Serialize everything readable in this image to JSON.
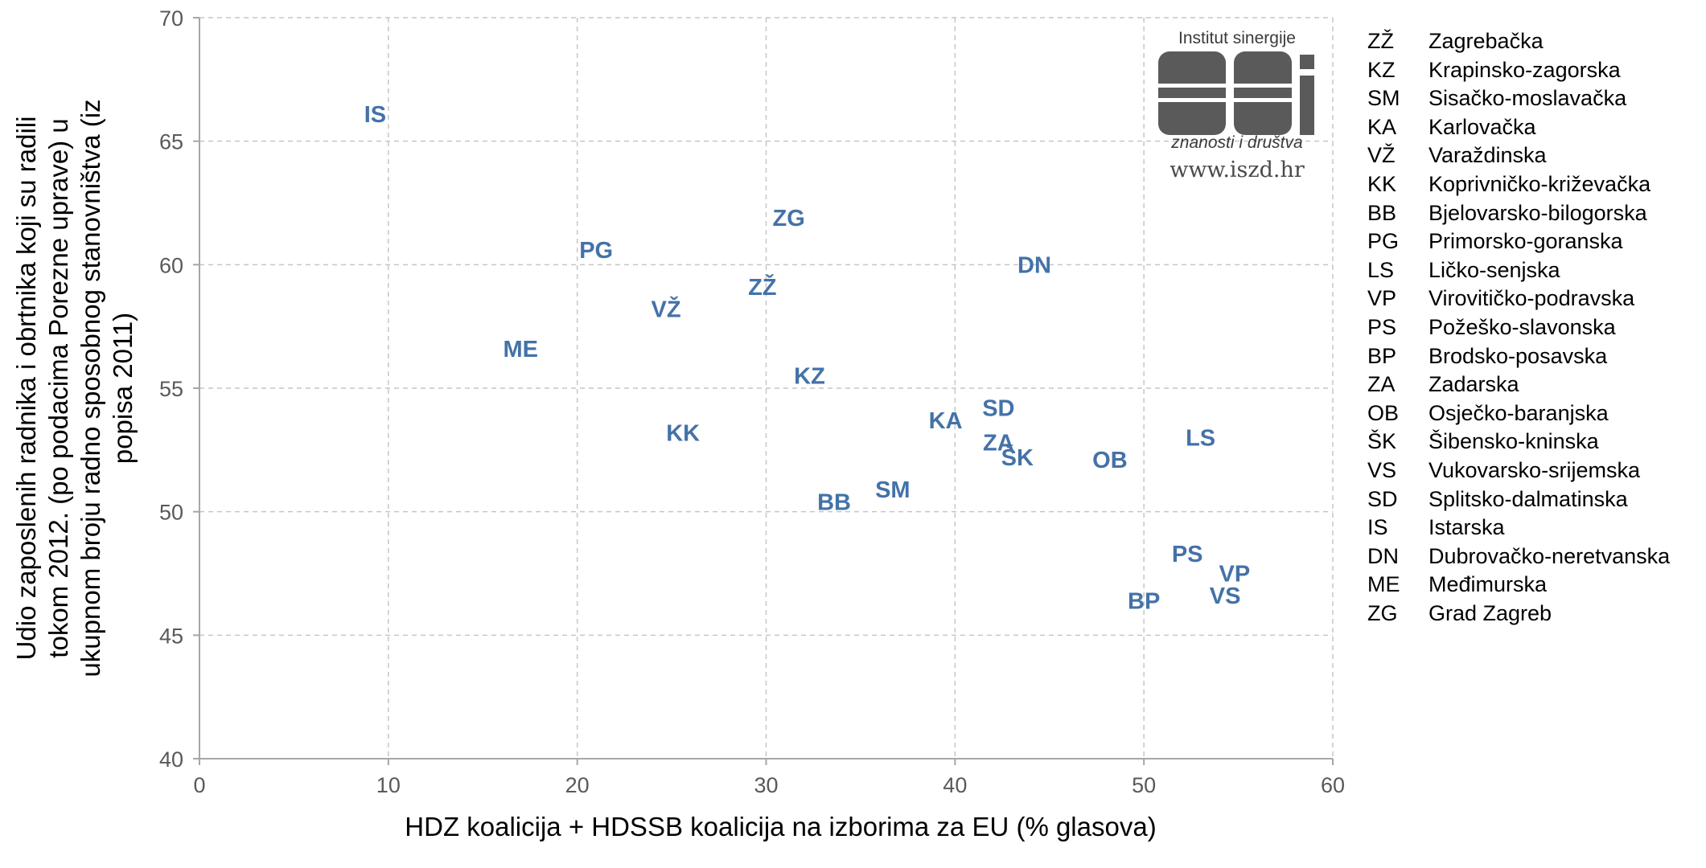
{
  "chart_data": {
    "type": "scatter",
    "xlabel": "HDZ koalicija + HDSSB koalicija na izborima za EU (% glasova)",
    "ylabel_lines": [
      "Udio zaposlenih radnika i obrtnika koji su radili",
      "tokom 2012. (po podacima Porezne uprave) u",
      "ukupnom broju radno sposobnog stanovništva (iz",
      "popisa 2011)"
    ],
    "xlim": [
      0,
      60
    ],
    "ylim": [
      40,
      70
    ],
    "x_ticks": [
      0,
      10,
      20,
      30,
      40,
      50,
      60
    ],
    "y_ticks": [
      40,
      45,
      50,
      55,
      60,
      65,
      70
    ],
    "grid": true,
    "point_color": "#4472a8",
    "points": [
      {
        "label": "IS",
        "x": 9.3,
        "y": 66.1
      },
      {
        "label": "ZG",
        "x": 31.2,
        "y": 61.9
      },
      {
        "label": "PG",
        "x": 21.0,
        "y": 60.6
      },
      {
        "label": "DN",
        "x": 44.2,
        "y": 60.0
      },
      {
        "label": "ZŽ",
        "x": 29.8,
        "y": 59.1
      },
      {
        "label": "VŽ",
        "x": 24.7,
        "y": 58.2
      },
      {
        "label": "ME",
        "x": 17.0,
        "y": 56.6
      },
      {
        "label": "KZ",
        "x": 32.3,
        "y": 55.5
      },
      {
        "label": "SD",
        "x": 42.3,
        "y": 54.2
      },
      {
        "label": "KA",
        "x": 39.5,
        "y": 53.7
      },
      {
        "label": "KK",
        "x": 25.6,
        "y": 53.2
      },
      {
        "label": "LS",
        "x": 53.0,
        "y": 53.0
      },
      {
        "label": "ZA",
        "x": 42.3,
        "y": 52.8
      },
      {
        "label": "ŠK",
        "x": 43.3,
        "y": 52.2
      },
      {
        "label": "OB",
        "x": 48.2,
        "y": 52.1
      },
      {
        "label": "SM",
        "x": 36.7,
        "y": 50.9
      },
      {
        "label": "BB",
        "x": 33.6,
        "y": 50.4
      },
      {
        "label": "PS",
        "x": 52.3,
        "y": 48.3
      },
      {
        "label": "VP",
        "x": 54.8,
        "y": 47.5
      },
      {
        "label": "VS",
        "x": 54.3,
        "y": 46.6
      },
      {
        "label": "BP",
        "x": 50.0,
        "y": 46.4
      }
    ]
  },
  "legend": [
    {
      "code": "ZŽ",
      "name": "Zagrebačka"
    },
    {
      "code": "KZ",
      "name": "Krapinsko-zagorska"
    },
    {
      "code": "SM",
      "name": "Sisačko-moslavačka"
    },
    {
      "code": "KA",
      "name": "Karlovačka"
    },
    {
      "code": "VŽ",
      "name": "Varaždinska"
    },
    {
      "code": "KK",
      "name": "Koprivničko-križevačka"
    },
    {
      "code": "BB",
      "name": "Bjelovarsko-bilogorska"
    },
    {
      "code": "PG",
      "name": "Primorsko-goranska"
    },
    {
      "code": "LS",
      "name": "Ličko-senjska"
    },
    {
      "code": "VP",
      "name": "Virovitičko-podravska"
    },
    {
      "code": "PS",
      "name": "Požeško-slavonska"
    },
    {
      "code": "BP",
      "name": "Brodsko-posavska"
    },
    {
      "code": "ZA",
      "name": "Zadarska"
    },
    {
      "code": "OB",
      "name": "Osječko-baranjska"
    },
    {
      "code": "ŠK",
      "name": "Šibensko-kninska"
    },
    {
      "code": "VS",
      "name": "Vukovarsko-srijemska"
    },
    {
      "code": "SD",
      "name": "Splitsko-dalmatinska"
    },
    {
      "code": "IS",
      "name": "Istarska"
    },
    {
      "code": "DN",
      "name": "Dubrovačko-neretvanska"
    },
    {
      "code": "ME",
      "name": "Međimurska"
    },
    {
      "code": "ZG",
      "name": "Grad Zagreb"
    }
  ],
  "logo": {
    "top_text": "Institut sinergije",
    "bottom_text": "znanosti i društva",
    "url": "www.iszd.hr"
  }
}
